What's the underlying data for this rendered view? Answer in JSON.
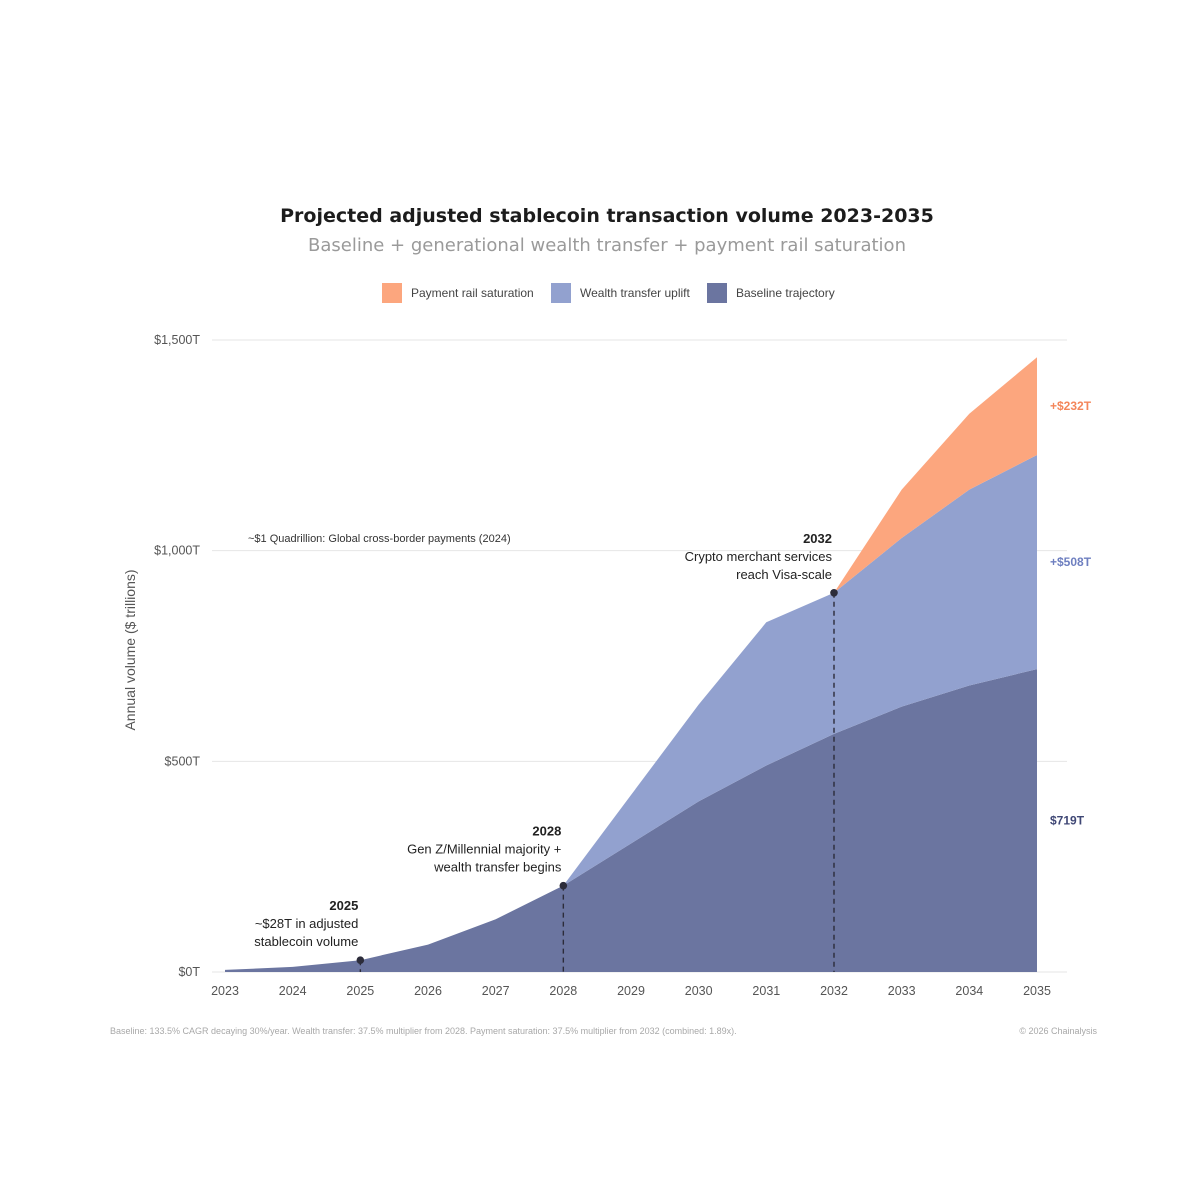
{
  "chart_data": {
    "type": "area",
    "stacked": true,
    "title": "Projected adjusted stablecoin transaction volume 2023-2035",
    "subtitle": "Baseline + generational wealth transfer + payment rail saturation",
    "ylabel": "Annual volume ($ trillions)",
    "xlabel": "",
    "ylim": [
      0,
      1500
    ],
    "y_ticks": [
      0,
      500,
      1000,
      1500
    ],
    "y_tick_labels": [
      "$0T",
      "$500T",
      "$1,000T",
      "$1,500T"
    ],
    "grid": true,
    "legend_position": "top",
    "x": [
      2023,
      2024,
      2025,
      2026,
      2027,
      2028,
      2029,
      2030,
      2031,
      2032,
      2033,
      2034,
      2035
    ],
    "x_labels": [
      "2023",
      "2024",
      "2025",
      "2026",
      "2027",
      "2028",
      "2029",
      "2030",
      "2031",
      "2032",
      "2033",
      "2034",
      "2035"
    ],
    "series": [
      {
        "name": "Baseline trajectory",
        "color": "#6b75a0",
        "values": [
          5,
          12,
          28,
          65,
          125,
          205,
          305,
          405,
          490,
          565,
          630,
          680,
          719
        ]
      },
      {
        "name": "Wealth transfer uplift",
        "color": "#92a1cf",
        "values": [
          0,
          0,
          0,
          0,
          0,
          0,
          115,
          230,
          340,
          335,
          400,
          465,
          508
        ]
      },
      {
        "name": "Payment rail saturation",
        "color": "#fca67e",
        "values": [
          0,
          0,
          0,
          0,
          0,
          0,
          0,
          0,
          0,
          0,
          115,
          180,
          232
        ]
      }
    ],
    "legend": [
      {
        "label": "Payment rail saturation",
        "color": "#fca67e"
      },
      {
        "label": "Wealth transfer uplift",
        "color": "#92a1cf"
      },
      {
        "label": "Baseline trajectory",
        "color": "#6b75a0"
      }
    ],
    "reference_note": "~$1 Quadrillion: Global cross-border payments (2024)",
    "end_labels": [
      {
        "text": "+$232T",
        "color": "#f4865a"
      },
      {
        "text": "+$508T",
        "color": "#6e7fc0"
      },
      {
        "text": "$719T",
        "color": "#3f4775"
      }
    ],
    "annotations": [
      {
        "x": 2025,
        "y": 28,
        "year": "2025",
        "lines": [
          "~$28T in adjusted",
          "stablecoin volume"
        ]
      },
      {
        "x": 2028,
        "y": 205,
        "year": "2028",
        "lines": [
          "Gen Z/Millennial majority +",
          "wealth transfer begins"
        ]
      },
      {
        "x": 2032,
        "y": 900,
        "year": "2032",
        "lines": [
          "Crypto merchant services",
          "reach Visa-scale"
        ]
      }
    ]
  },
  "footer": {
    "note": "Baseline: 133.5% CAGR decaying 30%/year. Wealth transfer: 37.5% multiplier from 2028. Payment saturation: 37.5% multiplier from 2032 (combined: 1.89x).",
    "copyright": "© 2026 Chainalysis"
  }
}
